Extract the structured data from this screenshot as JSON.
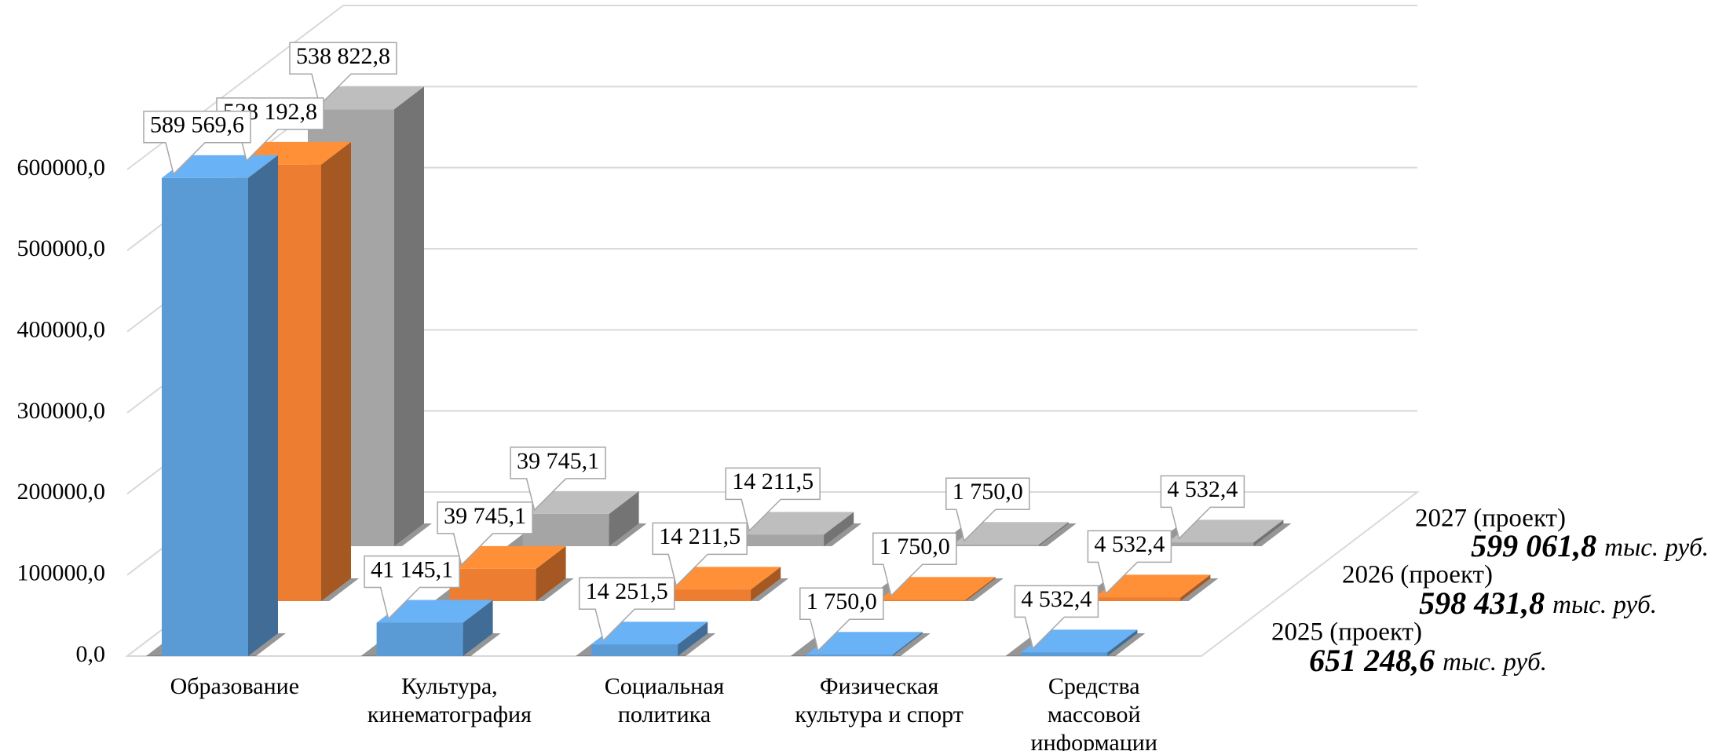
{
  "chart_data": {
    "type": "bar3d",
    "categories": [
      "Образование",
      "Культура,\nкинематография",
      "Социальная\nполитика",
      "Физическая\nкультура и спорт",
      "Средства\nмассовой\nинформации"
    ],
    "unit": "тыс. руб.",
    "series": [
      {
        "name": "2025 (проект)",
        "color": "#5b9bd5",
        "total_label": "651 248,6",
        "values": [
          589569.6,
          41145.1,
          14251.5,
          1750.0,
          4532.4
        ],
        "value_labels": [
          "589 569,6",
          "41 145,1",
          "14 251,5",
          "1 750,0",
          "4 532,4"
        ]
      },
      {
        "name": "2026 (проект)",
        "color": "#ed7d31",
        "total_label": "598 431,8",
        "values": [
          538192.8,
          39745.1,
          14211.5,
          1750.0,
          4532.4
        ],
        "value_labels": [
          "538 192,8",
          "39 745,1",
          "14 211,5",
          "1 750,0",
          "4 532,4"
        ]
      },
      {
        "name": "2027 (проект)",
        "color": "#a5a5a5",
        "total_label": "599 061,8",
        "values": [
          538822.8,
          39745.1,
          14211.5,
          1750.0,
          4532.4
        ],
        "value_labels": [
          "538 822,8",
          "39 745,1",
          "14 211,5",
          "1 750,0",
          "4 532,4"
        ]
      }
    ],
    "ylim": [
      0,
      600000
    ],
    "yticks": [
      {
        "value": 0,
        "label": "0,0"
      },
      {
        "value": 100000,
        "label": "100000,0"
      },
      {
        "value": 200000,
        "label": "200000,0"
      },
      {
        "value": 300000,
        "label": "300000,0"
      },
      {
        "value": 400000,
        "label": "400000,0"
      },
      {
        "value": 500000,
        "label": "500000,0"
      },
      {
        "value": 600000,
        "label": "600000,0"
      }
    ],
    "grid": true
  }
}
